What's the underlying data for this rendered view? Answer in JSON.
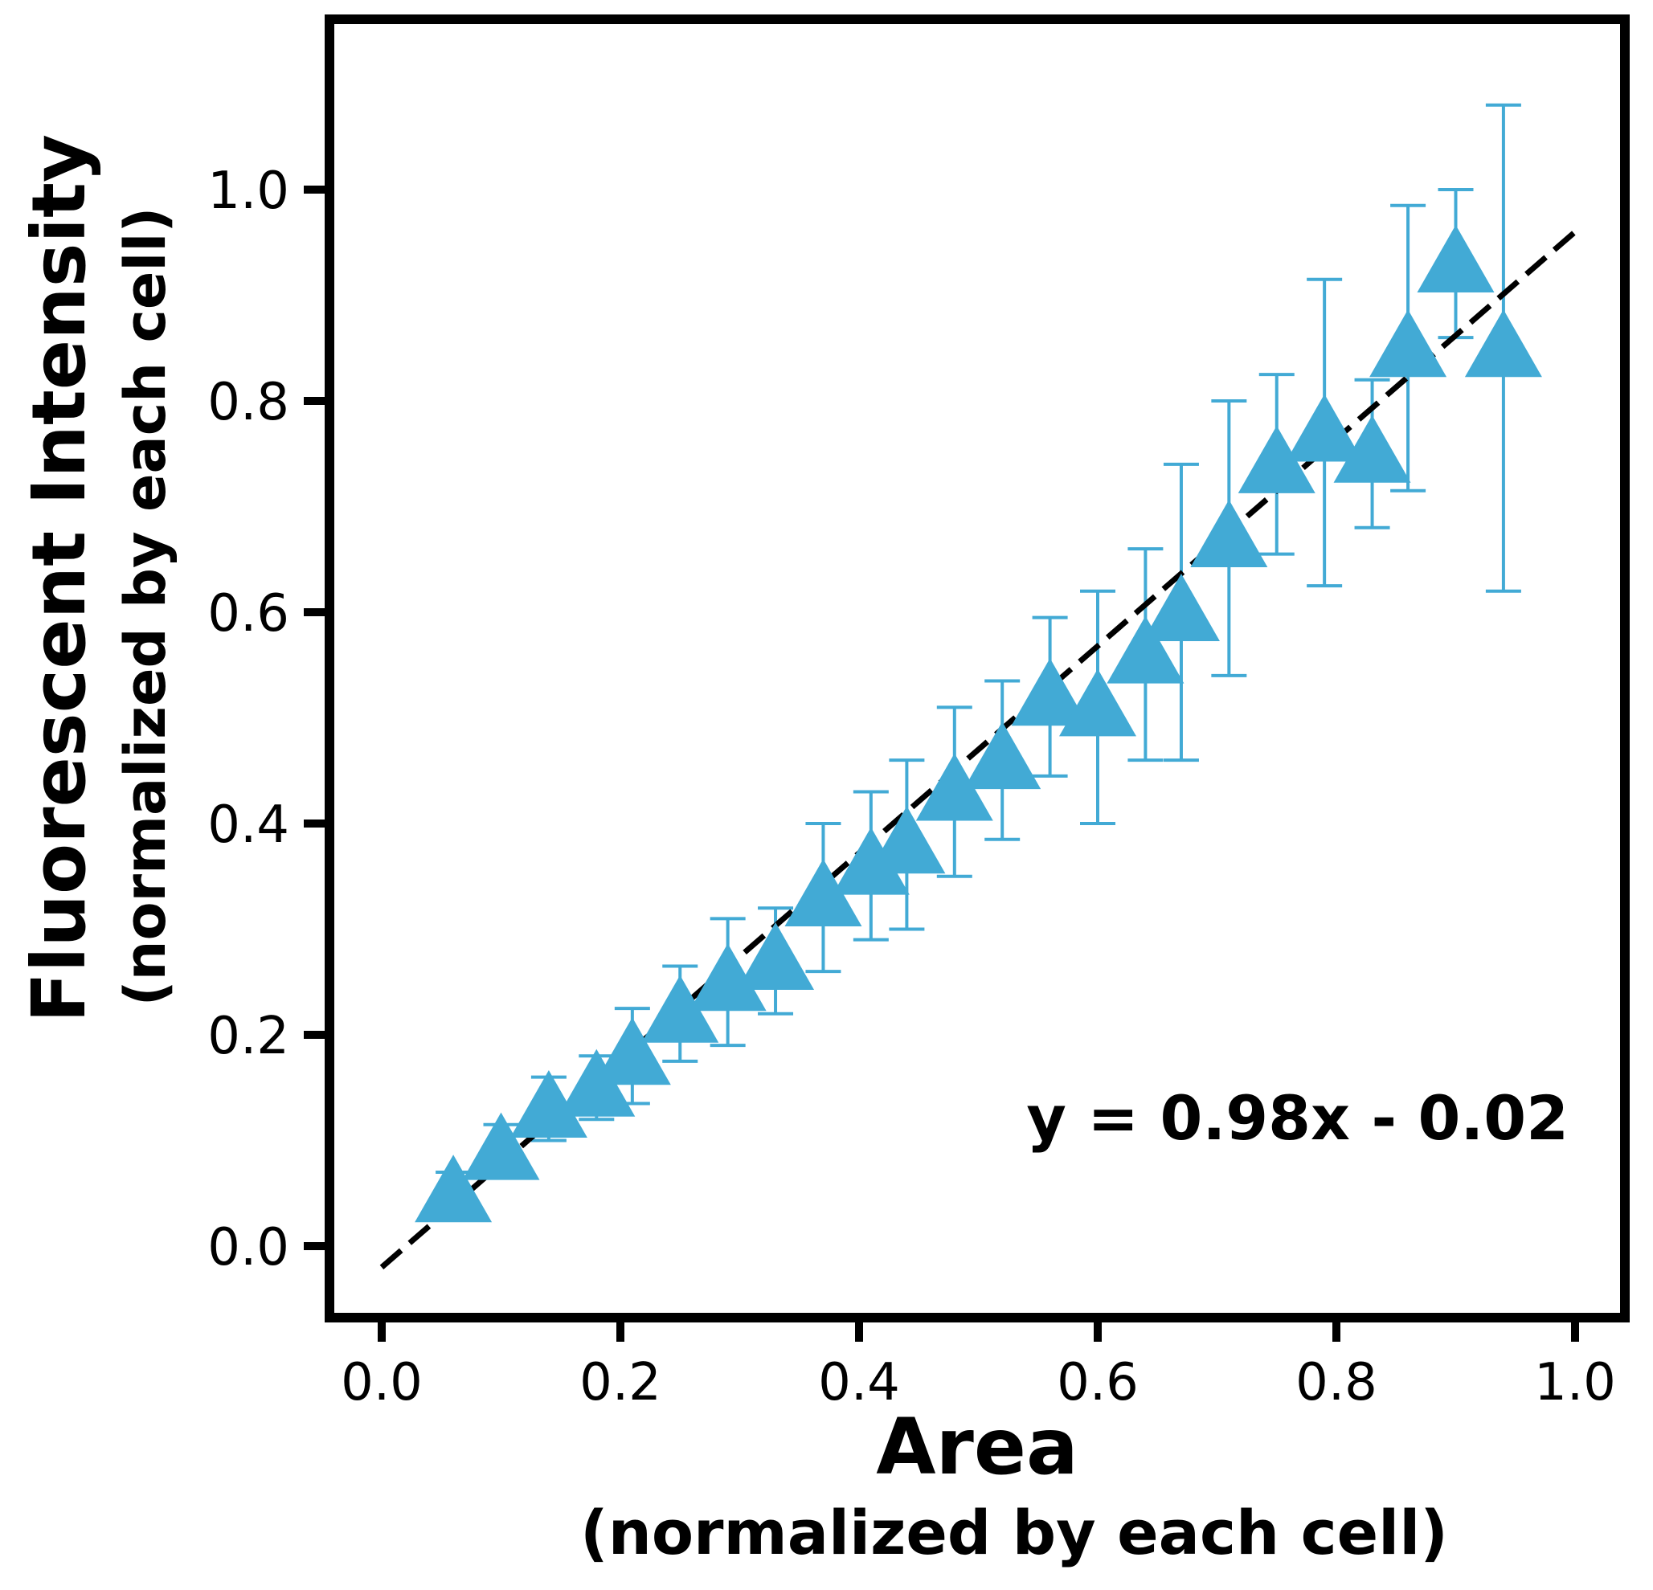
{
  "chart_data": {
    "type": "scatter",
    "xlabel": "Area",
    "xlabel_sub": "(normalized by each cell)",
    "ylabel": "Fluorescent Intensity",
    "ylabel_sub": "(normalized by each cell)",
    "xlim": [
      -0.05,
      1.04
    ],
    "ylim": [
      -0.08,
      1.16
    ],
    "xticks": [
      "0.0",
      "0.2",
      "0.4",
      "0.6",
      "0.8",
      "1.0"
    ],
    "yticks": [
      "0.0",
      "0.2",
      "0.4",
      "0.6",
      "0.8",
      "1.0"
    ],
    "grid": false,
    "legend": "none",
    "marker_color": "#42aad5",
    "fit_color": "#000000",
    "annotation": "y = 0.98x - 0.02",
    "fit": {
      "slope": 0.98,
      "intercept": -0.02,
      "x_range": [
        0.0,
        1.0
      ]
    },
    "points": [
      {
        "x": 0.06,
        "y": 0.05,
        "err": 0.02
      },
      {
        "x": 0.1,
        "y": 0.09,
        "err": 0.025
      },
      {
        "x": 0.14,
        "y": 0.13,
        "err": 0.03
      },
      {
        "x": 0.18,
        "y": 0.15,
        "err": 0.03
      },
      {
        "x": 0.21,
        "y": 0.18,
        "err": 0.045
      },
      {
        "x": 0.25,
        "y": 0.22,
        "err": 0.045
      },
      {
        "x": 0.29,
        "y": 0.25,
        "err": 0.06
      },
      {
        "x": 0.33,
        "y": 0.27,
        "err": 0.05
      },
      {
        "x": 0.37,
        "y": 0.33,
        "err": 0.07
      },
      {
        "x": 0.41,
        "y": 0.36,
        "err": 0.07
      },
      {
        "x": 0.44,
        "y": 0.38,
        "err": 0.08
      },
      {
        "x": 0.48,
        "y": 0.43,
        "err": 0.08
      },
      {
        "x": 0.52,
        "y": 0.46,
        "err": 0.075
      },
      {
        "x": 0.56,
        "y": 0.52,
        "err": 0.075
      },
      {
        "x": 0.6,
        "y": 0.51,
        "err": 0.11
      },
      {
        "x": 0.64,
        "y": 0.56,
        "err": 0.1
      },
      {
        "x": 0.67,
        "y": 0.6,
        "err": 0.14
      },
      {
        "x": 0.71,
        "y": 0.67,
        "err": 0.13
      },
      {
        "x": 0.75,
        "y": 0.74,
        "err": 0.085
      },
      {
        "x": 0.79,
        "y": 0.77,
        "err": 0.145
      },
      {
        "x": 0.83,
        "y": 0.75,
        "err": 0.07
      },
      {
        "x": 0.86,
        "y": 0.85,
        "err": 0.135
      },
      {
        "x": 0.9,
        "y": 0.93,
        "err": 0.07
      },
      {
        "x": 0.94,
        "y": 0.85,
        "err": 0.23
      }
    ]
  }
}
